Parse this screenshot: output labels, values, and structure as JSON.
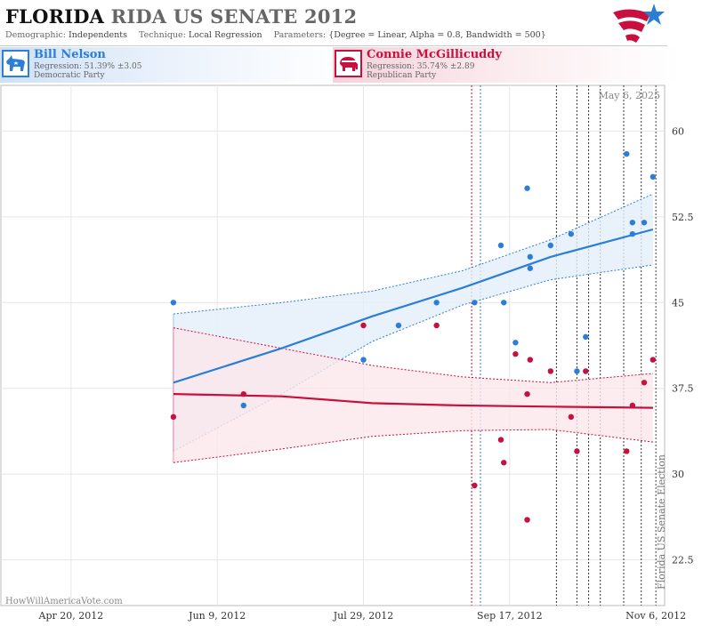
{
  "header": {
    "title_state": "FLORIDA",
    "title_rest": "RIDA US SENATE 2012",
    "demographic_label": "Demographic:",
    "demographic_value": "Independents",
    "technique_label": "Technique:",
    "technique_value": "Local Regression",
    "parameters_label": "Parameters:",
    "parameters_value": "{Degree = Linear, Alpha = 0.8, Bandwidth = 500}"
  },
  "candidates": {
    "dem": {
      "name": "Bill Nelson",
      "regression": "Regression: 51.39% ±3.05",
      "party": "Democratic Party",
      "color": "#2a7ed6"
    },
    "rep": {
      "name": "Connie McGillicuddy",
      "regression": "Regression: 35.74% ±2.89",
      "party": "Republican Party",
      "color": "#c8103e"
    }
  },
  "chart_data": {
    "type": "scatter",
    "date_label": "May 6, 2025",
    "watermark": "HowWillAmericaVote.com",
    "event_label": "Florida US Senate Election",
    "x_ticks": [
      "Apr 20, 2012",
      "Jun 9, 2012",
      "Jul 29, 2012",
      "Sep 17, 2012",
      "Nov 6, 2012"
    ],
    "y_ticks": [
      "22.5",
      "30",
      "37.5",
      "45",
      "52.5",
      "60"
    ],
    "xlim": [
      "2012-03-27",
      "2012-11-09"
    ],
    "ylim": [
      18.5,
      64
    ],
    "grid": true,
    "event_date": "2012-11-06",
    "vlines": [
      {
        "date": "2012-09-04",
        "color": "#c8103e"
      },
      {
        "date": "2012-09-07",
        "color": "#2a7ed6"
      },
      {
        "date": "2012-10-03",
        "color": "#333333"
      },
      {
        "date": "2012-10-10",
        "color": "#333333"
      },
      {
        "date": "2012-10-14",
        "color": "#333333"
      },
      {
        "date": "2012-10-18",
        "color": "#333333"
      },
      {
        "date": "2012-10-26",
        "color": "#333333"
      },
      {
        "date": "2012-11-01",
        "color": "#333333"
      }
    ],
    "series": [
      {
        "name": "Bill Nelson",
        "color": "#2a7ed6",
        "band_fill": "#e4eefa",
        "points": [
          [
            "2012-05-25",
            45
          ],
          [
            "2012-06-18",
            36
          ],
          [
            "2012-07-29",
            40
          ],
          [
            "2012-08-10",
            43
          ],
          [
            "2012-08-23",
            45
          ],
          [
            "2012-09-05",
            45
          ],
          [
            "2012-09-14",
            50
          ],
          [
            "2012-09-15",
            45
          ],
          [
            "2012-09-19",
            41.5
          ],
          [
            "2012-09-23",
            55
          ],
          [
            "2012-09-24",
            49
          ],
          [
            "2012-09-24",
            48
          ],
          [
            "2012-10-01",
            50
          ],
          [
            "2012-10-08",
            51
          ],
          [
            "2012-10-10",
            39
          ],
          [
            "2012-10-13",
            42
          ],
          [
            "2012-10-27",
            58
          ],
          [
            "2012-10-29",
            52
          ],
          [
            "2012-10-29",
            51
          ],
          [
            "2012-11-02",
            52
          ],
          [
            "2012-11-05",
            56
          ]
        ],
        "fit": [
          [
            "2012-05-25",
            38.0
          ],
          [
            "2012-07-01",
            41.0
          ],
          [
            "2012-08-01",
            43.8
          ],
          [
            "2012-09-01",
            46.3
          ],
          [
            "2012-10-01",
            49.0
          ],
          [
            "2012-11-05",
            51.4
          ]
        ],
        "upper": [
          [
            "2012-05-25",
            44.0
          ],
          [
            "2012-07-01",
            45.0
          ],
          [
            "2012-08-01",
            46.0
          ],
          [
            "2012-09-01",
            47.8
          ],
          [
            "2012-10-01",
            50.5
          ],
          [
            "2012-11-05",
            54.5
          ]
        ],
        "lower": [
          [
            "2012-05-25",
            32.0
          ],
          [
            "2012-07-01",
            37.0
          ],
          [
            "2012-08-01",
            41.6
          ],
          [
            "2012-09-01",
            44.8
          ],
          [
            "2012-10-01",
            47.0
          ],
          [
            "2012-11-05",
            48.3
          ]
        ]
      },
      {
        "name": "Connie McGillicuddy",
        "color": "#c8103e",
        "band_fill": "#fbe7ec",
        "points": [
          [
            "2012-05-25",
            35
          ],
          [
            "2012-06-18",
            37
          ],
          [
            "2012-07-29",
            43
          ],
          [
            "2012-08-23",
            43
          ],
          [
            "2012-09-05",
            29
          ],
          [
            "2012-09-14",
            33
          ],
          [
            "2012-09-15",
            31
          ],
          [
            "2012-09-19",
            40.5
          ],
          [
            "2012-09-23",
            37
          ],
          [
            "2012-09-23",
            26
          ],
          [
            "2012-09-24",
            40
          ],
          [
            "2012-10-01",
            39
          ],
          [
            "2012-10-08",
            35
          ],
          [
            "2012-10-10",
            32
          ],
          [
            "2012-10-13",
            39
          ],
          [
            "2012-10-27",
            32
          ],
          [
            "2012-10-29",
            36
          ],
          [
            "2012-11-02",
            38
          ],
          [
            "2012-11-05",
            40
          ]
        ],
        "fit": [
          [
            "2012-05-25",
            37.0
          ],
          [
            "2012-07-01",
            36.8
          ],
          [
            "2012-08-01",
            36.2
          ],
          [
            "2012-09-01",
            36.0
          ],
          [
            "2012-10-01",
            35.9
          ],
          [
            "2012-11-05",
            35.8
          ]
        ],
        "upper": [
          [
            "2012-05-25",
            42.8
          ],
          [
            "2012-07-01",
            41.0
          ],
          [
            "2012-08-01",
            39.5
          ],
          [
            "2012-09-01",
            38.5
          ],
          [
            "2012-10-01",
            38.0
          ],
          [
            "2012-11-05",
            38.8
          ]
        ],
        "lower": [
          [
            "2012-05-25",
            31.0
          ],
          [
            "2012-07-01",
            32.2
          ],
          [
            "2012-08-01",
            33.3
          ],
          [
            "2012-09-01",
            33.8
          ],
          [
            "2012-10-01",
            33.9
          ],
          [
            "2012-11-05",
            32.8
          ]
        ]
      }
    ]
  }
}
